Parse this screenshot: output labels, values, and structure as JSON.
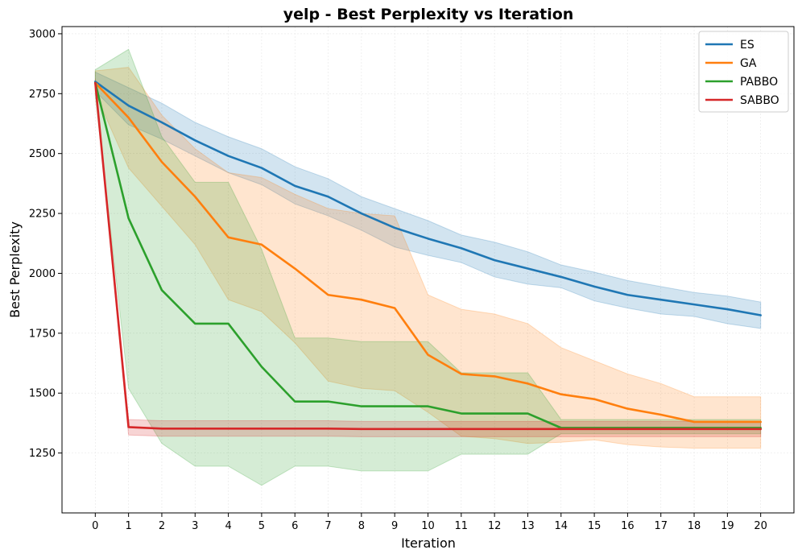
{
  "chart_data": {
    "type": "line",
    "title": "yelp - Best Perplexity vs Iteration",
    "xlabel": "Iteration",
    "ylabel": "Best Perplexity",
    "xlim": [
      -1,
      21
    ],
    "ylim": [
      1000,
      3030
    ],
    "x": [
      0,
      1,
      2,
      3,
      4,
      5,
      6,
      7,
      8,
      9,
      10,
      11,
      12,
      13,
      14,
      15,
      16,
      17,
      18,
      19,
      20
    ],
    "x_ticks": [
      0,
      1,
      2,
      3,
      4,
      5,
      6,
      7,
      8,
      9,
      10,
      11,
      12,
      13,
      14,
      15,
      16,
      17,
      18,
      19,
      20
    ],
    "y_ticks": [
      1250,
      1500,
      1750,
      2000,
      2250,
      2500,
      2750,
      3000
    ],
    "grid": true,
    "legend_position": "top-right",
    "series": [
      {
        "name": "ES",
        "color": "#1f77b4",
        "values": [
          2800,
          2700,
          2630,
          2555,
          2490,
          2440,
          2365,
          2320,
          2250,
          2190,
          2145,
          2105,
          2055,
          2020,
          1985,
          1945,
          1910,
          1890,
          1870,
          1850,
          1825
        ],
        "lower": [
          2760,
          2620,
          2560,
          2490,
          2420,
          2370,
          2290,
          2240,
          2180,
          2110,
          2075,
          2045,
          1985,
          1955,
          1940,
          1885,
          1855,
          1830,
          1820,
          1790,
          1770
        ],
        "upper": [
          2840,
          2775,
          2710,
          2630,
          2570,
          2520,
          2445,
          2395,
          2320,
          2270,
          2220,
          2160,
          2130,
          2090,
          2035,
          2005,
          1970,
          1945,
          1920,
          1905,
          1880
        ]
      },
      {
        "name": "GA",
        "color": "#ff7f0e",
        "values": [
          2795,
          2650,
          2465,
          2320,
          2150,
          2120,
          2020,
          1910,
          1890,
          1855,
          1660,
          1580,
          1570,
          1540,
          1495,
          1475,
          1435,
          1410,
          1380,
          1380,
          1380
        ],
        "lower": [
          2750,
          2440,
          2280,
          2120,
          1890,
          1840,
          1710,
          1550,
          1520,
          1510,
          1420,
          1320,
          1310,
          1290,
          1295,
          1305,
          1285,
          1275,
          1270,
          1270,
          1270
        ],
        "upper": [
          2845,
          2860,
          2660,
          2520,
          2420,
          2400,
          2330,
          2270,
          2250,
          2240,
          1910,
          1850,
          1830,
          1790,
          1690,
          1635,
          1580,
          1540,
          1485,
          1485,
          1485
        ]
      },
      {
        "name": "PABBO",
        "color": "#2ca02c",
        "values": [
          2795,
          2230,
          1930,
          1790,
          1790,
          1610,
          1465,
          1465,
          1445,
          1445,
          1445,
          1415,
          1415,
          1415,
          1355,
          1355,
          1355,
          1355,
          1355,
          1355,
          1355
        ],
        "lower": [
          2740,
          1520,
          1290,
          1195,
          1195,
          1115,
          1195,
          1195,
          1175,
          1175,
          1175,
          1245,
          1245,
          1245,
          1330,
          1330,
          1330,
          1330,
          1330,
          1330,
          1330
        ],
        "upper": [
          2850,
          2935,
          2570,
          2380,
          2380,
          2100,
          1730,
          1730,
          1715,
          1715,
          1715,
          1585,
          1585,
          1585,
          1390,
          1390,
          1390,
          1390,
          1390,
          1390,
          1390
        ]
      },
      {
        "name": "SABBO",
        "color": "#d62728",
        "values": [
          2795,
          1358,
          1352,
          1352,
          1352,
          1352,
          1352,
          1352,
          1350,
          1350,
          1350,
          1350,
          1350,
          1350,
          1350,
          1350,
          1350,
          1350,
          1350,
          1350,
          1350
        ],
        "lower": [
          2780,
          1325,
          1320,
          1320,
          1320,
          1320,
          1320,
          1320,
          1318,
          1318,
          1318,
          1318,
          1318,
          1318,
          1318,
          1318,
          1318,
          1318,
          1318,
          1318,
          1318
        ],
        "upper": [
          2810,
          1390,
          1385,
          1385,
          1385,
          1385,
          1385,
          1385,
          1382,
          1382,
          1382,
          1382,
          1382,
          1382,
          1382,
          1382,
          1382,
          1382,
          1382,
          1382,
          1382
        ]
      }
    ]
  }
}
